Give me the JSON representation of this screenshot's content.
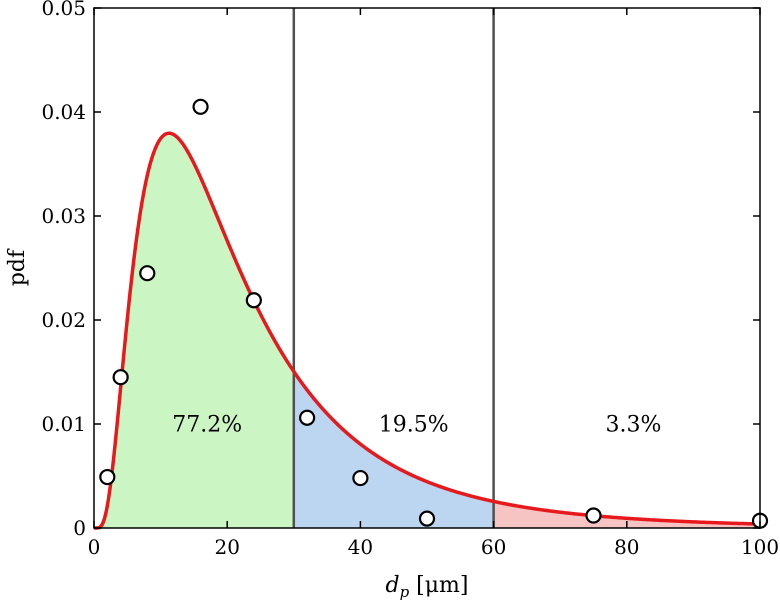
{
  "chart_data": {
    "type": "line",
    "xlabel": "d_p [μm]",
    "xlabel_main": "d",
    "xlabel_sub": "p",
    "xlabel_unit": " [μm]",
    "ylabel": "pdf",
    "xlim": [
      0,
      100
    ],
    "ylim": [
      0,
      0.05
    ],
    "x_ticks": [
      0,
      20,
      40,
      60,
      80,
      100
    ],
    "x_tick_labels": [
      "0",
      "20",
      "40",
      "60",
      "80",
      "100"
    ],
    "y_ticks": [
      0,
      0.01,
      0.02,
      0.03,
      0.04,
      0.05
    ],
    "y_tick_labels": [
      "0",
      "0.01",
      "0.02",
      "0.03",
      "0.04",
      "0.05"
    ],
    "grid": false,
    "curve": {
      "distribution": "lognormal",
      "mu": 2.94,
      "sigma": 0.72,
      "color": "#e8191c",
      "x": [
        0.5,
        1,
        2,
        3,
        4,
        5,
        6,
        8,
        10,
        12,
        14,
        16,
        18,
        20,
        24,
        28,
        30,
        35,
        40,
        45,
        50,
        55,
        60,
        70,
        80,
        90,
        100
      ],
      "y": [
        0.0,
        0.0,
        0.0013,
        0.0055,
        0.0117,
        0.0185,
        0.0248,
        0.0342,
        0.039,
        0.0405,
        0.0398,
        0.038,
        0.0355,
        0.0327,
        0.0271,
        0.0221,
        0.0199,
        0.0153,
        0.0117,
        0.009,
        0.0069,
        0.0054,
        0.0042,
        0.0027,
        0.0017,
        0.0012,
        0.0008
      ]
    },
    "points": {
      "marker": "open-circle",
      "x": [
        2,
        4,
        8,
        16,
        24,
        32,
        40,
        50,
        75,
        100
      ],
      "y": [
        0.0049,
        0.0145,
        0.0245,
        0.0405,
        0.0219,
        0.0106,
        0.0048,
        0.0009,
        0.0012,
        0.0007
      ]
    },
    "regions": [
      {
        "x_range": [
          0,
          30
        ],
        "color": "#ccf5c4",
        "label": "77.2%",
        "label_x": 17,
        "label_y": 0.0093
      },
      {
        "x_range": [
          30,
          60
        ],
        "color": "#bcd6f2",
        "label": "19.5%",
        "label_x": 48,
        "label_y": 0.0093
      },
      {
        "x_range": [
          60,
          100
        ],
        "color": "#f7c4c4",
        "label": "3.3%",
        "label_x": 81,
        "label_y": 0.0093
      }
    ],
    "vlines": [
      30,
      60
    ]
  }
}
